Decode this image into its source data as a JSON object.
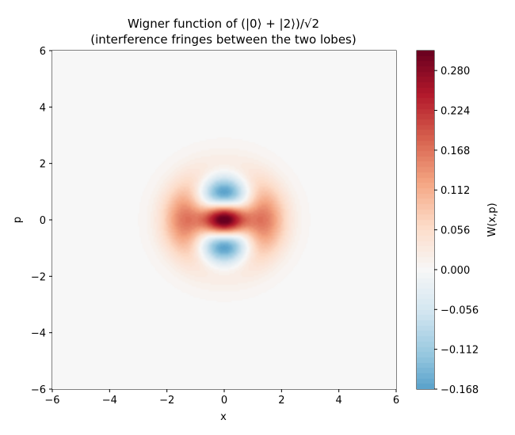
{
  "chart_data": {
    "type": "heatmap",
    "title_lines": [
      "Wigner function of (|0⟩ + |2⟩)/√2",
      "(interference fringes between the two lobes)"
    ],
    "xlabel": "x",
    "ylabel": "p",
    "colorbar_label": "W(x,p)",
    "xlim": [
      -6,
      6
    ],
    "ylim": [
      -6,
      6
    ],
    "x_ticks": [
      -6,
      -4,
      -2,
      0,
      2,
      4,
      6
    ],
    "y_ticks": [
      -6,
      -4,
      -2,
      0,
      2,
      4,
      6
    ],
    "x_tick_labels": [
      "−6",
      "−4",
      "−2",
      "0",
      "2",
      "4",
      "6"
    ],
    "y_tick_labels": [
      "−6",
      "−4",
      "−2",
      "0",
      "2",
      "4",
      "6"
    ],
    "colormap": "RdBu_r",
    "vmin": -0.168,
    "vmax": 0.308,
    "colorbar_ticks": [
      -0.168,
      -0.112,
      -0.056,
      0.0,
      0.056,
      0.112,
      0.168,
      0.224,
      0.28
    ],
    "colorbar_tick_labels": [
      "−0.168",
      "−0.112",
      "−0.056",
      "0.000",
      "0.056",
      "0.112",
      "0.168",
      "0.224",
      "0.280"
    ],
    "features": {
      "peak_value_at_origin": 0.308,
      "negative_lobes_at": [
        [
          0,
          1.0
        ],
        [
          0,
          -1.0
        ]
      ],
      "negative_lobe_min": -0.168
    },
    "colors": {
      "neg_max": "#4a95c4",
      "neutral": "#f5f5f5",
      "pos_max": "#67001f"
    }
  }
}
